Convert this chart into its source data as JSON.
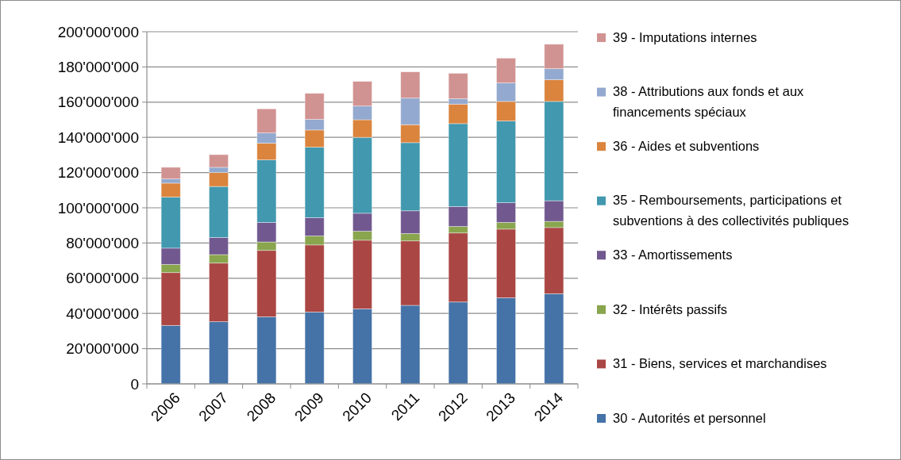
{
  "chart_data": {
    "type": "bar",
    "stacked": true,
    "categories": [
      "2006",
      "2007",
      "2008",
      "2009",
      "2010",
      "2011",
      "2012",
      "2013",
      "2014"
    ],
    "series": [
      {
        "name": "30 - Autorités et personnel",
        "color": "#4572a7",
        "values": [
          33200000,
          35300000,
          38100000,
          40800000,
          42600000,
          44600000,
          46500000,
          48900000,
          51200000
        ]
      },
      {
        "name": "31 - Biens, services et marchandises",
        "color": "#aa4643",
        "values": [
          30000000,
          33300000,
          37700000,
          38100000,
          39000000,
          36600000,
          39200000,
          39000000,
          37600000
        ]
      },
      {
        "name": "32 - Intérêts passifs",
        "color": "#89a54e",
        "values": [
          4600000,
          4800000,
          4800000,
          5100000,
          5100000,
          4200000,
          3700000,
          3800000,
          3500000
        ]
      },
      {
        "name": "33 - Amortissements",
        "color": "#71588f",
        "values": [
          9300000,
          9700000,
          11100000,
          10400000,
          10200000,
          12900000,
          11300000,
          11200000,
          11700000
        ]
      },
      {
        "name": "35 - Remboursements, participations et subventions à des collectivités publiques",
        "color": "#4198af",
        "values": [
          29000000,
          29000000,
          35500000,
          40000000,
          43100000,
          38700000,
          47100000,
          46400000,
          56400000
        ]
      },
      {
        "name": "36 - Aides et subventions",
        "color": "#db843d",
        "values": [
          7900000,
          7900000,
          9500000,
          9800000,
          10000000,
          10200000,
          11100000,
          11100000,
          12300000
        ]
      },
      {
        "name": "38 - Attributions aux fonds et aux financements spéciaux",
        "color": "#93a9cf",
        "values": [
          2400000,
          3000000,
          5800000,
          6000000,
          7800000,
          15100000,
          3000000,
          10500000,
          6300000
        ]
      },
      {
        "name": "39 - Imputations internes",
        "color": "#d19392",
        "values": [
          6600000,
          7200000,
          13700000,
          14800000,
          14000000,
          14900000,
          14500000,
          14100000,
          13900000
        ]
      }
    ],
    "ylim": [
      0,
      200000000
    ],
    "yticks": [
      {
        "value": 0,
        "label": "0"
      },
      {
        "value": 20000000,
        "label": "20'000'000"
      },
      {
        "value": 40000000,
        "label": "40'000'000"
      },
      {
        "value": 60000000,
        "label": "60'000'000"
      },
      {
        "value": 80000000,
        "label": "80'000'000"
      },
      {
        "value": 100000000,
        "label": "100'000'000"
      },
      {
        "value": 120000000,
        "label": "120'000'000"
      },
      {
        "value": 140000000,
        "label": "140'000'000"
      },
      {
        "value": 160000000,
        "label": "160'000'000"
      },
      {
        "value": 180000000,
        "label": "180'000'000"
      },
      {
        "value": 200000000,
        "label": "200'000'000"
      }
    ],
    "grid": "y",
    "legend": "right"
  }
}
